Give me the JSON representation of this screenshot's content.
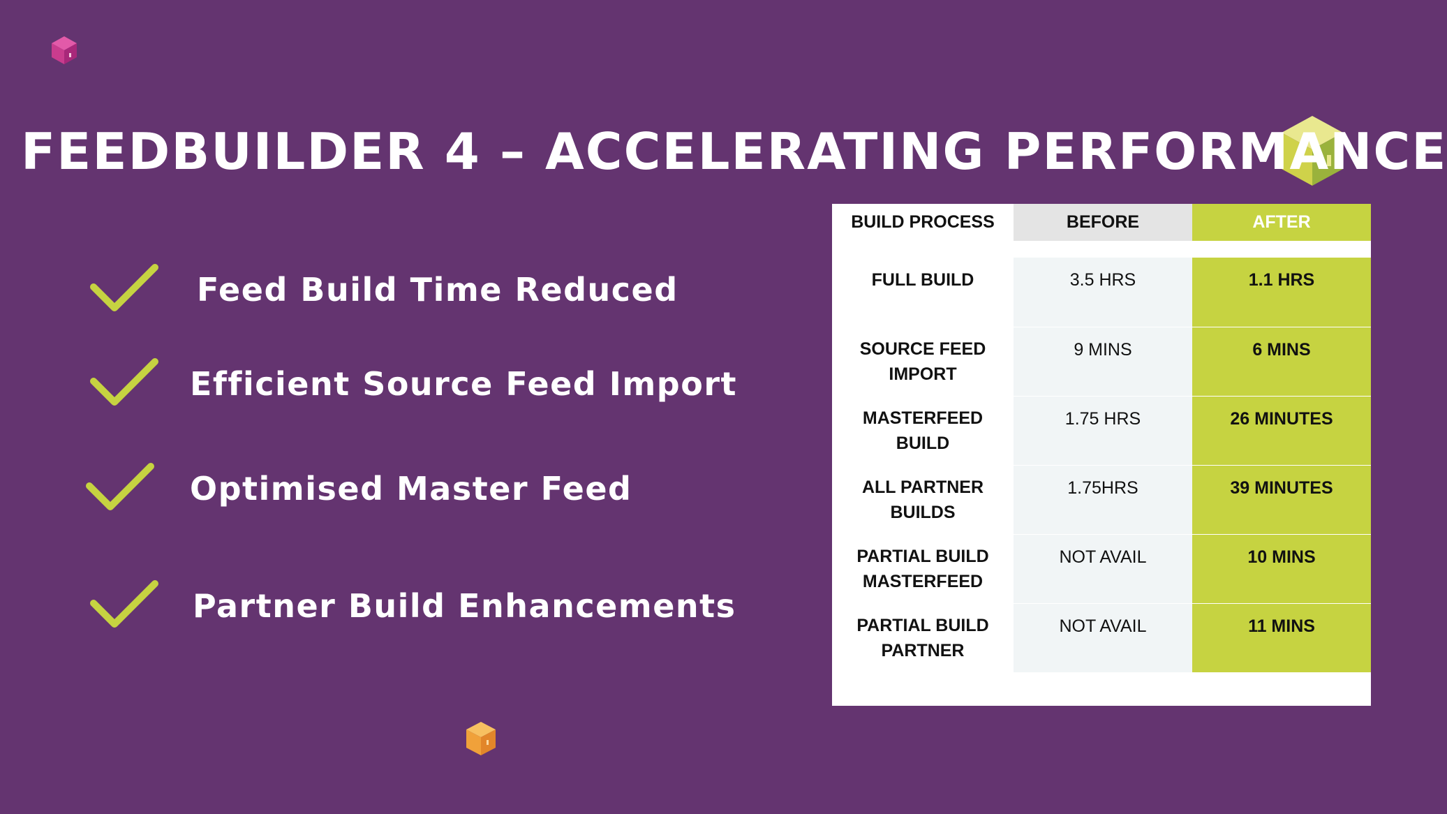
{
  "title": "FEEDBUILDER 4 – ACCELERATING PERFORMANCE",
  "colors": {
    "background": "#643470",
    "accent_green": "#c6d341",
    "before_column": "#f1f5f6",
    "header_before": "#e4e4e4"
  },
  "decorations": [
    "magenta-cube-icon",
    "yellow-green-cube-icon",
    "orange-cube-icon"
  ],
  "bullets": [
    {
      "icon": "checkmark-icon",
      "text": "Feed Build Time Reduced"
    },
    {
      "icon": "checkmark-icon",
      "text": "Efficient Source Feed Import"
    },
    {
      "icon": "checkmark-icon",
      "text": "Optimised Master Feed"
    },
    {
      "icon": "checkmark-icon",
      "text": "Partner Build Enhancements"
    }
  ],
  "table": {
    "headers": [
      "BUILD PROCESS",
      "BEFORE",
      "AFTER"
    ],
    "rows": [
      {
        "process_line1": "FULL BUILD",
        "process_line2": "",
        "before": "3.5 HRS",
        "after": "1.1 HRS"
      },
      {
        "process_line1": "SOURCE FEED",
        "process_line2": "IMPORT",
        "before": "9 MINS",
        "after": "6 MINS"
      },
      {
        "process_line1": "MASTERFEED",
        "process_line2": "BUILD",
        "before": "1.75 HRS",
        "after": "26 MINUTES"
      },
      {
        "process_line1": "ALL PARTNER",
        "process_line2": "BUILDS",
        "before": "1.75HRS",
        "after": "39 MINUTES"
      },
      {
        "process_line1": "PARTIAL BUILD",
        "process_line2": "MASTERFEED",
        "before": "NOT AVAIL",
        "after": "10 MINS"
      },
      {
        "process_line1": "PARTIAL  BUILD",
        "process_line2": "PARTNER",
        "before": "NOT AVAIL",
        "after": "11 MINS"
      }
    ]
  }
}
